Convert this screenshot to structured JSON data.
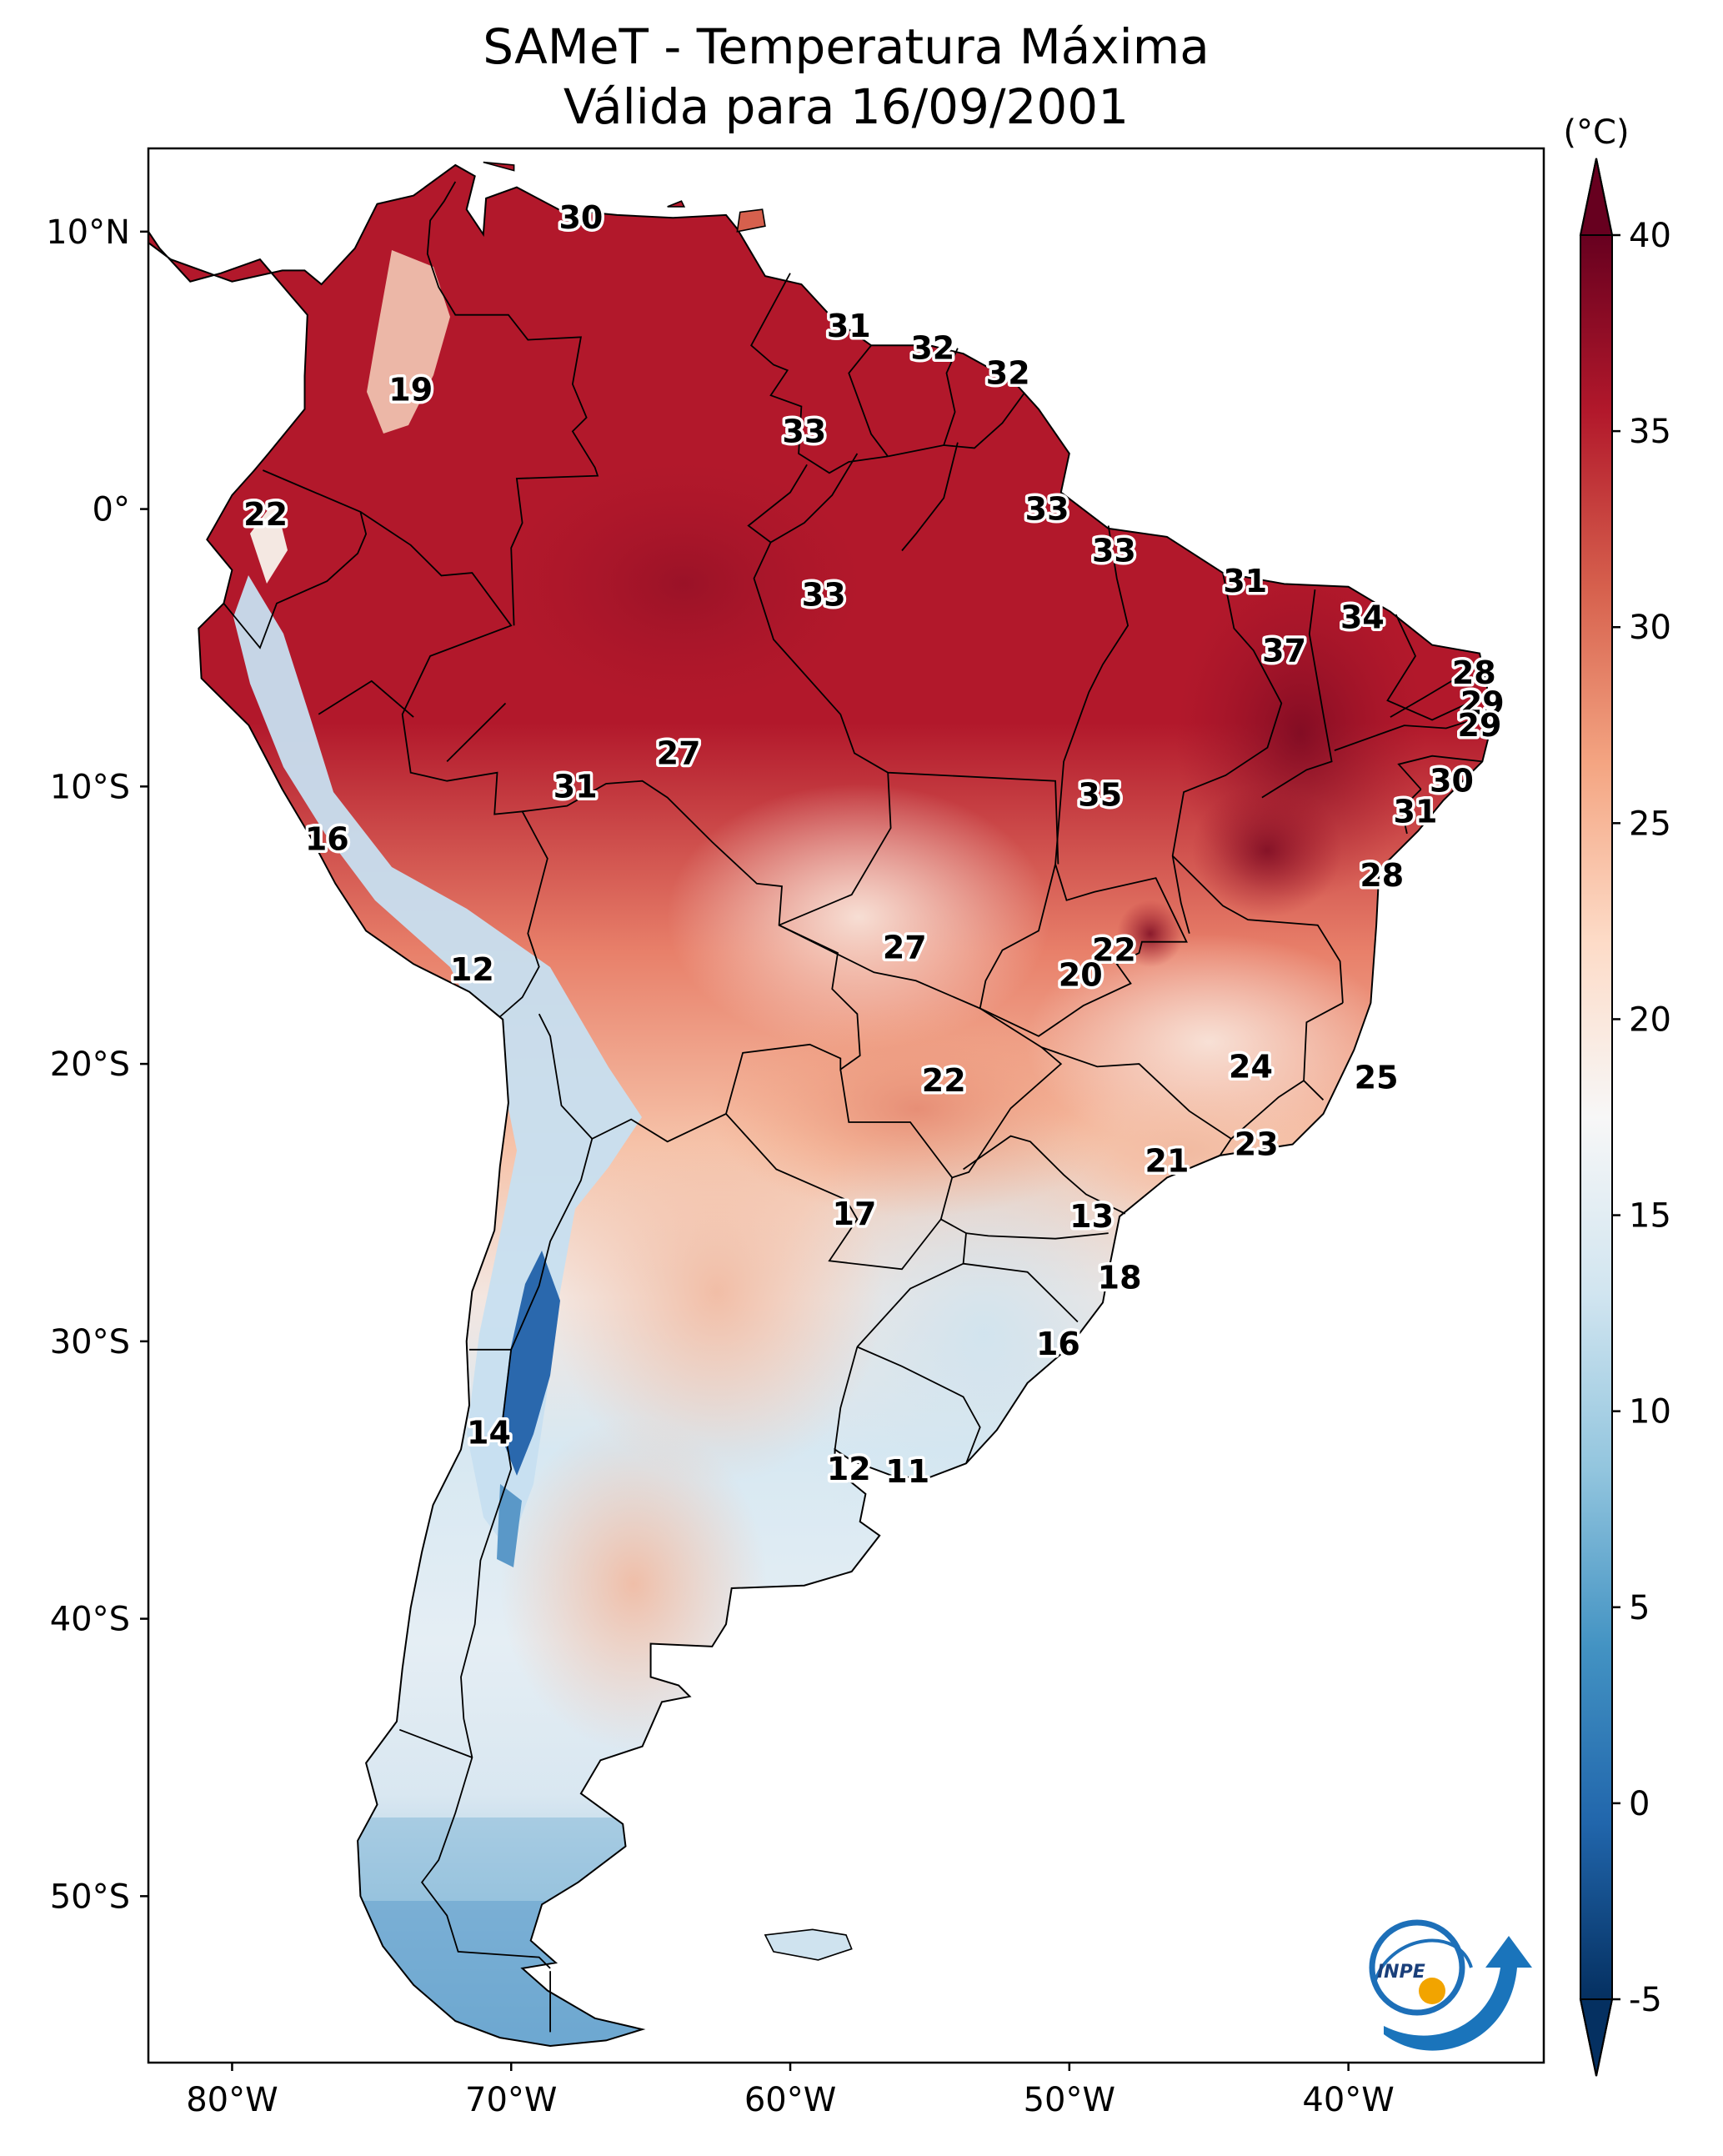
{
  "title": {
    "line1": "SAMeT - Temperatura Máxima",
    "line2": "Válida para 16/09/2001"
  },
  "map": {
    "lon_range": [
      -83,
      -33
    ],
    "lat_range": [
      -56,
      13
    ],
    "lat_ticks": [
      {
        "lat": 10,
        "label": "10°N"
      },
      {
        "lat": 0,
        "label": "0°"
      },
      {
        "lat": -10,
        "label": "10°S"
      },
      {
        "lat": -20,
        "label": "20°S"
      },
      {
        "lat": -30,
        "label": "30°S"
      },
      {
        "lat": -40,
        "label": "40°S"
      },
      {
        "lat": -50,
        "label": "50°S"
      }
    ],
    "lon_ticks": [
      {
        "lon": -80,
        "label": "80°W"
      },
      {
        "lon": -70,
        "label": "70°W"
      },
      {
        "lon": -60,
        "label": "60°W"
      },
      {
        "lon": -50,
        "label": "50°W"
      },
      {
        "lon": -40,
        "label": "40°W"
      }
    ]
  },
  "colorbar": {
    "unit": "(°C)",
    "min": -5,
    "max": 40,
    "ticks": [
      -5,
      0,
      5,
      10,
      15,
      20,
      25,
      30,
      35,
      40
    ],
    "colors": [
      "#053061",
      "#2166ac",
      "#4393c3",
      "#92c5de",
      "#d1e5f0",
      "#f7f7f7",
      "#fddbc7",
      "#f4a582",
      "#d6604d",
      "#b2182b",
      "#67001f"
    ]
  },
  "logo": {
    "text": "INPE"
  },
  "chart_data": {
    "type": "map",
    "variable": "Temperatura Máxima",
    "unit": "°C",
    "point_labels": [
      {
        "lon": -67.5,
        "lat": 10.5,
        "value": "30"
      },
      {
        "lon": -57.9,
        "lat": 6.6,
        "value": "31"
      },
      {
        "lon": -54.9,
        "lat": 5.8,
        "value": "32"
      },
      {
        "lon": -52.2,
        "lat": 4.9,
        "value": "32"
      },
      {
        "lon": -59.5,
        "lat": 2.8,
        "value": "33"
      },
      {
        "lon": -73.6,
        "lat": 4.3,
        "value": "19"
      },
      {
        "lon": -78.8,
        "lat": -0.2,
        "value": "22"
      },
      {
        "lon": -50.8,
        "lat": 0.0,
        "value": "33"
      },
      {
        "lon": -48.4,
        "lat": -1.5,
        "value": "33"
      },
      {
        "lon": -58.8,
        "lat": -3.1,
        "value": "33"
      },
      {
        "lon": -43.7,
        "lat": -2.6,
        "value": "31"
      },
      {
        "lon": -39.5,
        "lat": -3.9,
        "value": "34"
      },
      {
        "lon": -42.3,
        "lat": -5.1,
        "value": "37"
      },
      {
        "lon": -35.5,
        "lat": -5.9,
        "value": "28"
      },
      {
        "lon": -35.2,
        "lat": -7.0,
        "value": "29"
      },
      {
        "lon": -35.3,
        "lat": -7.8,
        "value": "29"
      },
      {
        "lon": -36.3,
        "lat": -9.8,
        "value": "30"
      },
      {
        "lon": -37.6,
        "lat": -10.9,
        "value": "31"
      },
      {
        "lon": -64.0,
        "lat": -8.8,
        "value": "27"
      },
      {
        "lon": -67.7,
        "lat": -10.0,
        "value": "31"
      },
      {
        "lon": -48.9,
        "lat": -10.3,
        "value": "35"
      },
      {
        "lon": -76.6,
        "lat": -11.9,
        "value": "16"
      },
      {
        "lon": -38.8,
        "lat": -13.2,
        "value": "28"
      },
      {
        "lon": -48.4,
        "lat": -15.9,
        "value": "22"
      },
      {
        "lon": -55.9,
        "lat": -15.8,
        "value": "27"
      },
      {
        "lon": -49.6,
        "lat": -16.8,
        "value": "20"
      },
      {
        "lon": -71.4,
        "lat": -16.6,
        "value": "12"
      },
      {
        "lon": -43.5,
        "lat": -20.1,
        "value": "24"
      },
      {
        "lon": -39.0,
        "lat": -20.5,
        "value": "25"
      },
      {
        "lon": -54.5,
        "lat": -20.6,
        "value": "22"
      },
      {
        "lon": -43.3,
        "lat": -22.9,
        "value": "23"
      },
      {
        "lon": -46.5,
        "lat": -23.5,
        "value": "21"
      },
      {
        "lon": -57.7,
        "lat": -25.4,
        "value": "17"
      },
      {
        "lon": -49.2,
        "lat": -25.5,
        "value": "13"
      },
      {
        "lon": -48.2,
        "lat": -27.7,
        "value": "18"
      },
      {
        "lon": -50.4,
        "lat": -30.1,
        "value": "16"
      },
      {
        "lon": -70.8,
        "lat": -33.3,
        "value": "14"
      },
      {
        "lon": -57.9,
        "lat": -34.6,
        "value": "12"
      },
      {
        "lon": -55.8,
        "lat": -34.7,
        "value": "11"
      }
    ]
  }
}
